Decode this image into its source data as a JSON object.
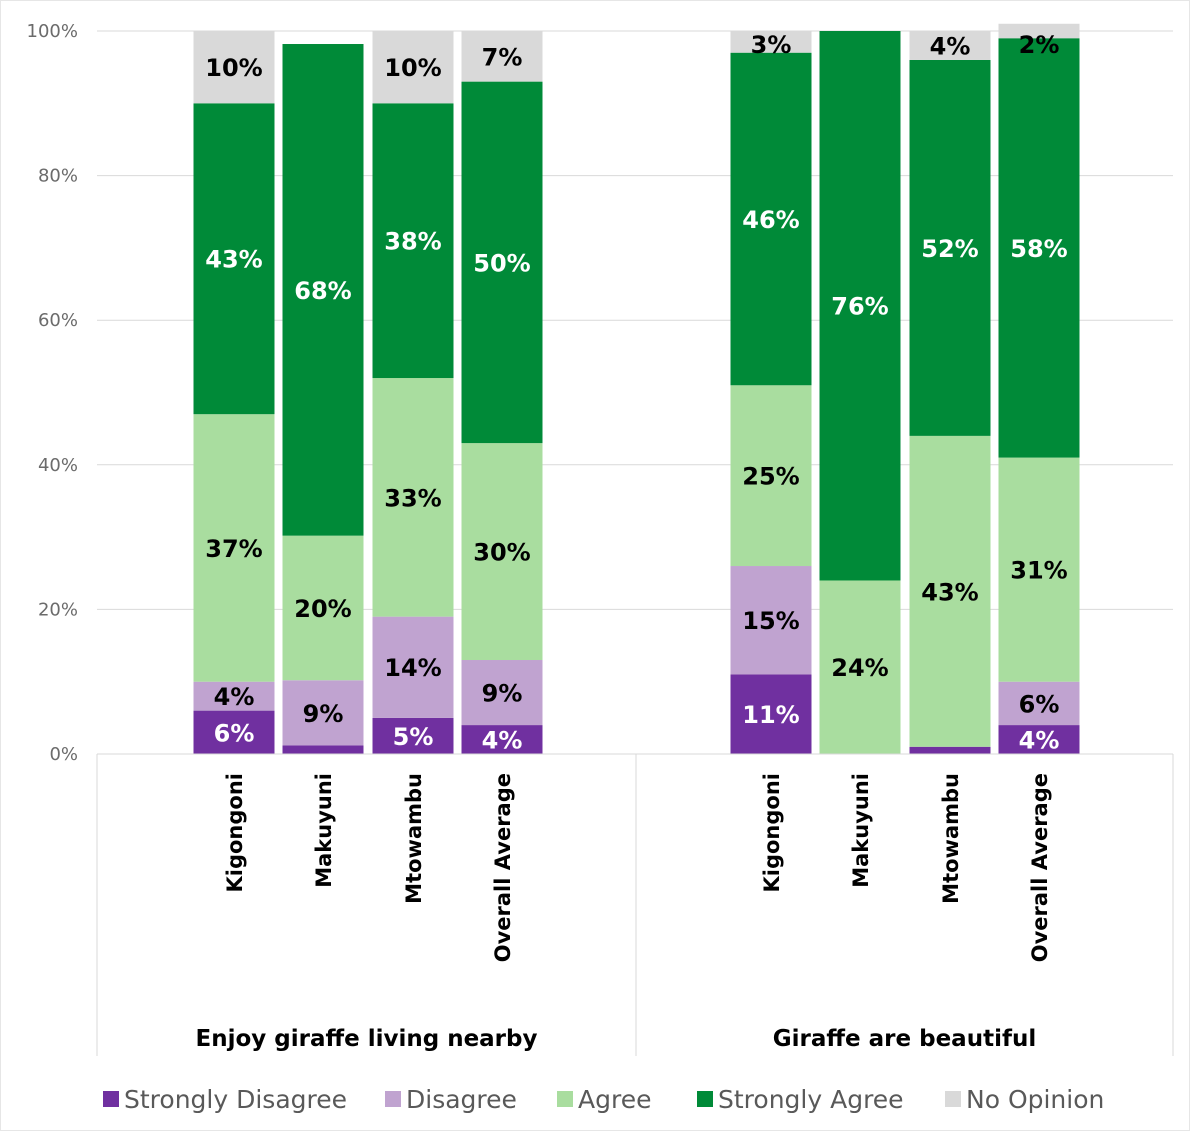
{
  "chart_data": {
    "type": "bar",
    "stacked": true,
    "percent_stacked": true,
    "groups": [
      {
        "name": "Enjoy giraffe living nearby",
        "categories": [
          "Kigongoni",
          "Makuyuni",
          "Mtowambu",
          "Overall Average"
        ]
      },
      {
        "name": "Giraffe are beautiful",
        "categories": [
          "Kigongoni",
          "Makuyuni",
          "Mtowambu",
          "Overall Average"
        ]
      }
    ],
    "series": [
      {
        "name": "Strongly Disagree",
        "color": "#7030a0",
        "label_color": "#ffffff",
        "values": [
          6,
          1.2,
          5,
          4,
          11,
          0,
          1,
          4
        ],
        "labels": [
          "6%",
          "",
          "5%",
          "4%",
          "11%",
          "",
          "",
          "4%"
        ]
      },
      {
        "name": "Disagree",
        "color": "#c0a3d0",
        "label_color": "#000000",
        "values": [
          4,
          9,
          14,
          9,
          15,
          0,
          0,
          6
        ],
        "labels": [
          "4%",
          "9%",
          "14%",
          "9%",
          "15%",
          "",
          "",
          "6%"
        ]
      },
      {
        "name": "Agree",
        "color": "#a9dd9f",
        "label_color": "#000000",
        "values": [
          37,
          20,
          33,
          30,
          25,
          24,
          43,
          31
        ],
        "labels": [
          "37%",
          "20%",
          "33%",
          "30%",
          "25%",
          "24%",
          "43%",
          "31%"
        ]
      },
      {
        "name": "Strongly Agree",
        "color": "#008a38",
        "label_color": "#ffffff",
        "values": [
          43,
          68,
          38,
          50,
          46,
          76,
          52,
          58
        ],
        "labels": [
          "43%",
          "68%",
          "38%",
          "50%",
          "46%",
          "76%",
          "52%",
          "58%"
        ]
      },
      {
        "name": "No Opinion",
        "color": "#d9d9d9",
        "label_color": "#000000",
        "values": [
          10,
          0,
          10,
          7,
          3,
          0,
          4,
          2
        ],
        "labels": [
          "10%",
          "",
          "10%",
          "7%",
          "3%",
          "",
          "4%",
          "2%"
        ]
      }
    ],
    "y_ticks": [
      "0%",
      "20%",
      "40%",
      "60%",
      "80%",
      "100%"
    ],
    "ylim": [
      0,
      100
    ],
    "grid": true,
    "legend_position": "bottom"
  }
}
